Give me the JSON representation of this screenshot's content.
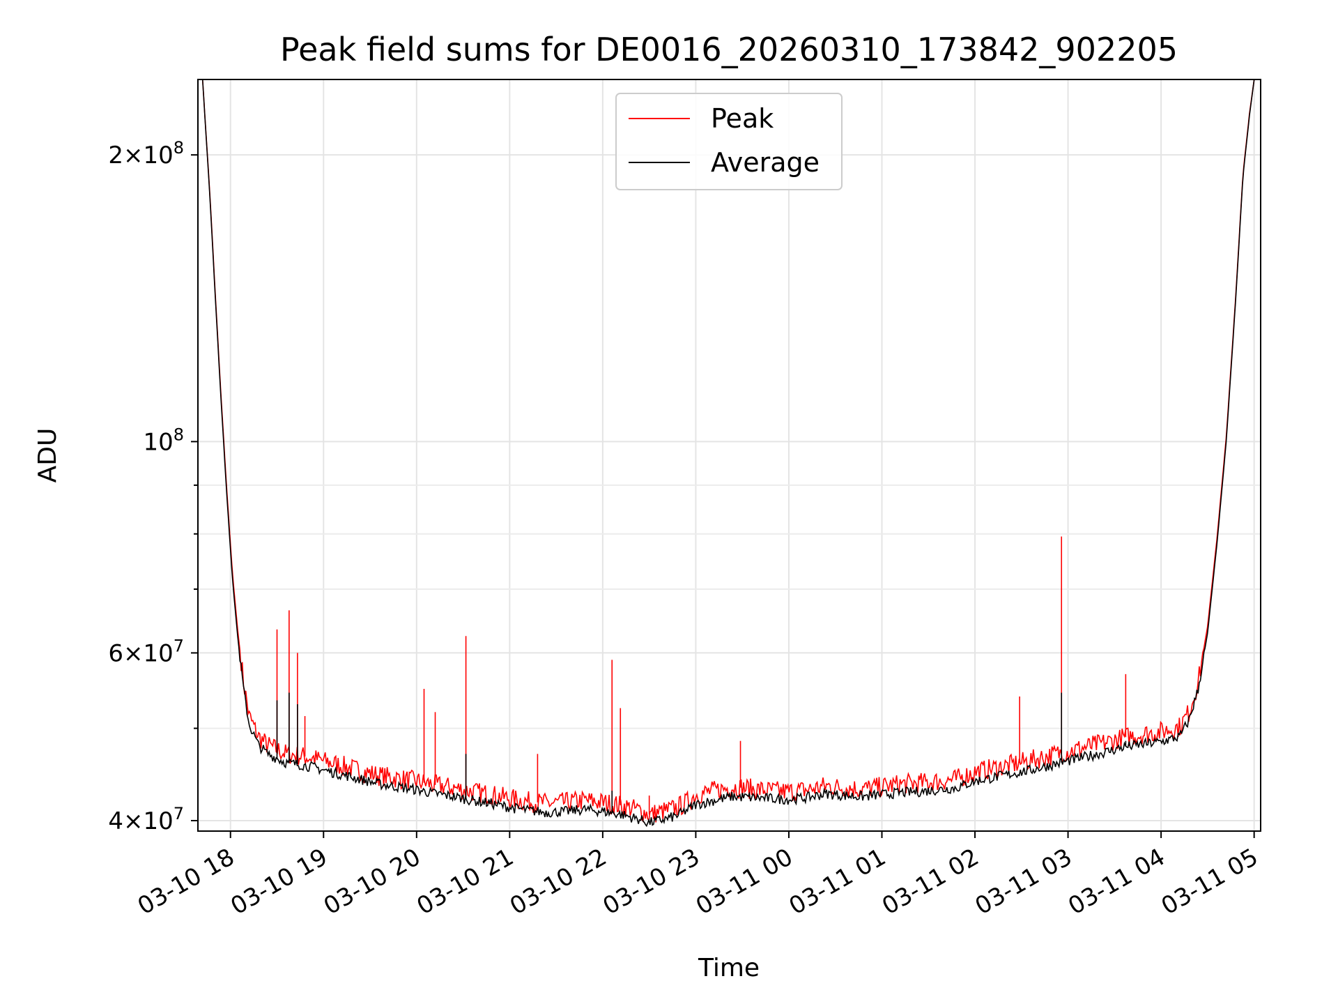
{
  "chart_data": {
    "type": "line",
    "title": "Peak field sums for DE0016_20260310_173842_902205",
    "xlabel": "Time",
    "ylabel": "ADU",
    "yscale": "log",
    "ylim": [
      39000000,
      240000000
    ],
    "xlim_hours": [
      17.65,
      29.07
    ],
    "grid": true,
    "legend": {
      "position": "upper center",
      "entries": [
        "Peak",
        "Average"
      ]
    },
    "x_ticks": [
      {
        "hour": 18,
        "label": "03-10 18"
      },
      {
        "hour": 19,
        "label": "03-10 19"
      },
      {
        "hour": 20,
        "label": "03-10 20"
      },
      {
        "hour": 21,
        "label": "03-10 21"
      },
      {
        "hour": 22,
        "label": "03-10 22"
      },
      {
        "hour": 23,
        "label": "03-10 23"
      },
      {
        "hour": 24,
        "label": "03-11 00"
      },
      {
        "hour": 25,
        "label": "03-11 01"
      },
      {
        "hour": 26,
        "label": "03-11 02"
      },
      {
        "hour": 27,
        "label": "03-11 03"
      },
      {
        "hour": 28,
        "label": "03-11 04"
      },
      {
        "hour": 29,
        "label": "03-11 05"
      }
    ],
    "y_major_ticks": [
      {
        "value": 40000000,
        "mant": "4",
        "exp": "7"
      },
      {
        "value": 60000000,
        "mant": "6",
        "exp": "7"
      },
      {
        "value": 100000000,
        "mant": "",
        "exp": "8"
      },
      {
        "value": 200000000,
        "mant": "2",
        "exp": "8"
      }
    ],
    "y_minor_ticks": [
      50000000,
      70000000,
      80000000,
      90000000,
      300000000
    ],
    "series": [
      {
        "name": "Average",
        "color": "#000000",
        "x_hours": [
          17.7,
          17.78,
          17.84,
          17.9,
          17.96,
          18.02,
          18.08,
          18.14,
          18.2,
          18.3,
          18.4,
          18.5,
          18.6,
          18.75,
          18.9,
          19.0,
          19.2,
          19.4,
          19.6,
          19.8,
          20.0,
          20.2,
          20.4,
          20.6,
          20.8,
          21.0,
          21.2,
          21.4,
          21.6,
          21.8,
          22.0,
          22.2,
          22.4,
          22.5,
          22.6,
          22.7,
          22.8,
          22.9,
          23.0,
          23.2,
          23.4,
          23.6,
          23.8,
          24.0,
          24.2,
          24.4,
          24.6,
          24.8,
          25.0,
          25.2,
          25.4,
          25.6,
          25.8,
          26.0,
          26.2,
          26.4,
          26.6,
          26.8,
          27.0,
          27.2,
          27.4,
          27.6,
          27.8,
          28.0,
          28.2,
          28.3,
          28.4,
          28.5,
          28.6,
          28.7,
          28.8,
          28.88,
          28.95,
          29.0
        ],
        "values": [
          240000000,
          180000000,
          140000000,
          110000000,
          88000000,
          72000000,
          62000000,
          55000000,
          50500000,
          48000000,
          47000000,
          46500000,
          46000000,
          45800000,
          45500000,
          45200000,
          44700000,
          44200000,
          43700000,
          43400000,
          43100000,
          42700000,
          42400000,
          42000000,
          41700000,
          41300000,
          41000000,
          40800000,
          40900000,
          41100000,
          40900000,
          40600000,
          40100000,
          39800000,
          40000000,
          40200000,
          40500000,
          41000000,
          41600000,
          42000000,
          42400000,
          42300000,
          42200000,
          42100000,
          42300000,
          42700000,
          42500000,
          42400000,
          42600000,
          42800000,
          42900000,
          43100000,
          43300000,
          44000000,
          44400000,
          44800000,
          45200000,
          45700000,
          46200000,
          46700000,
          47200000,
          47800000,
          48100000,
          48400000,
          49000000,
          51000000,
          55000000,
          63000000,
          78000000,
          100000000,
          140000000,
          190000000,
          220000000,
          240000000
        ]
      },
      {
        "name": "Peak",
        "color": "#ff0000",
        "x_hours": [
          17.7,
          17.78,
          17.84,
          17.9,
          17.96,
          18.02,
          18.08,
          18.14,
          18.2,
          18.3,
          18.4,
          18.5,
          18.6,
          18.75,
          18.9,
          19.0,
          19.2,
          19.4,
          19.6,
          19.8,
          20.0,
          20.2,
          20.4,
          20.6,
          20.8,
          21.0,
          21.2,
          21.4,
          21.6,
          21.8,
          22.0,
          22.2,
          22.4,
          22.5,
          22.6,
          22.7,
          22.8,
          22.9,
          23.0,
          23.2,
          23.4,
          23.6,
          23.8,
          24.0,
          24.2,
          24.4,
          24.6,
          24.8,
          25.0,
          25.2,
          25.4,
          25.6,
          25.8,
          26.0,
          26.2,
          26.4,
          26.6,
          26.8,
          27.0,
          27.2,
          27.4,
          27.6,
          27.8,
          28.0,
          28.2,
          28.3,
          28.4,
          28.5,
          28.6,
          28.7,
          28.8,
          28.88,
          28.95,
          29.0
        ],
        "values": [
          240000000,
          181000000,
          141000000,
          111000000,
          89000000,
          73000000,
          63000000,
          56000000,
          51500000,
          49000000,
          48000000,
          47500000,
          47000000,
          46800000,
          46500000,
          46200000,
          45700000,
          45100000,
          44600000,
          44300000,
          44000000,
          43600000,
          43300000,
          42900000,
          42600000,
          42200000,
          41900000,
          41700000,
          41800000,
          42000000,
          41800000,
          41500000,
          41000000,
          40600000,
          40800000,
          41000000,
          41300000,
          41800000,
          42600000,
          43000000,
          43400000,
          43200000,
          43000000,
          42900000,
          43100000,
          43500000,
          43300000,
          43200000,
          43400000,
          43700000,
          43800000,
          44000000,
          44200000,
          45000000,
          45400000,
          45800000,
          46300000,
          46800000,
          47300000,
          47800000,
          48300000,
          48900000,
          49300000,
          49600000,
          50200000,
          52000000,
          56000000,
          64000000,
          79000000,
          101000000,
          141000000,
          191000000,
          221000000,
          240000000
        ]
      }
    ],
    "peak_spikes": [
      {
        "x_hours": 18.5,
        "value": 63500000
      },
      {
        "x_hours": 18.63,
        "value": 66500000
      },
      {
        "x_hours": 18.72,
        "value": 60000000
      },
      {
        "x_hours": 18.8,
        "value": 51500000
      },
      {
        "x_hours": 20.08,
        "value": 55000000
      },
      {
        "x_hours": 20.2,
        "value": 52000000
      },
      {
        "x_hours": 20.53,
        "value": 62500000
      },
      {
        "x_hours": 21.3,
        "value": 47000000
      },
      {
        "x_hours": 22.1,
        "value": 59000000
      },
      {
        "x_hours": 22.19,
        "value": 52500000
      },
      {
        "x_hours": 22.5,
        "value": 42500000
      },
      {
        "x_hours": 23.48,
        "value": 48500000
      },
      {
        "x_hours": 26.48,
        "value": 54000000
      },
      {
        "x_hours": 26.93,
        "value": 79500000
      },
      {
        "x_hours": 27.62,
        "value": 57000000
      }
    ],
    "average_spikes": [
      {
        "x_hours": 18.5,
        "value": 53500000
      },
      {
        "x_hours": 18.63,
        "value": 54500000
      },
      {
        "x_hours": 18.72,
        "value": 53000000
      },
      {
        "x_hours": 20.53,
        "value": 47000000
      },
      {
        "x_hours": 22.1,
        "value": 43000000
      },
      {
        "x_hours": 26.93,
        "value": 54500000
      },
      {
        "x_hours": 27.62,
        "value": 48500000
      }
    ]
  }
}
